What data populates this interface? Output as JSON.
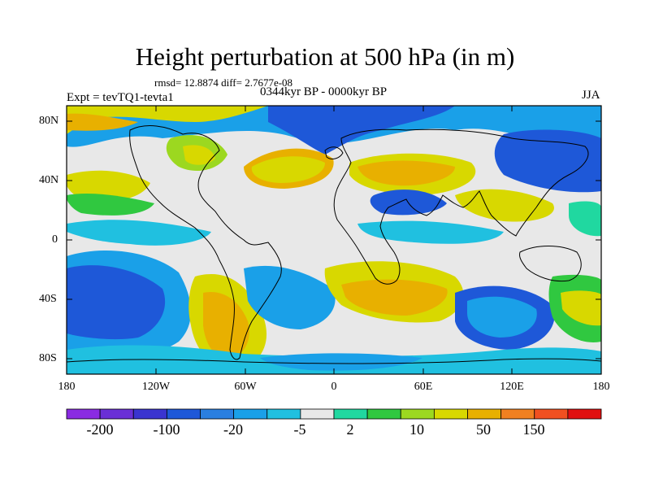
{
  "title": "Height perturbation at 500 hPa (in m)",
  "stats": "rmsd= 12.8874 diff= 2.7677e-08",
  "experiment": "Expt = tevTQ1-tevta1",
  "period": "0344kyr BP - 0000kyr BP",
  "season": "JJA",
  "map": {
    "lat_ticks": [
      "80N",
      "40N",
      "0",
      "40S",
      "80S"
    ],
    "lon_ticks": [
      "180",
      "120W",
      "60W",
      "0",
      "60E",
      "120E",
      "180"
    ]
  },
  "colorbar": {
    "colors": [
      "#8a2be2",
      "#6a2fd6",
      "#3a34d0",
      "#1e58d8",
      "#2a7fe0",
      "#1aa0e8",
      "#20c0e0",
      "#e8e8e8",
      "#20d8a0",
      "#30c840",
      "#9cd820",
      "#d8d800",
      "#e8b000",
      "#f08020",
      "#f05020",
      "#e01010"
    ],
    "labels": [
      "-200",
      "-100",
      "-20",
      "-5",
      "2",
      "10",
      "50",
      "150"
    ]
  }
}
